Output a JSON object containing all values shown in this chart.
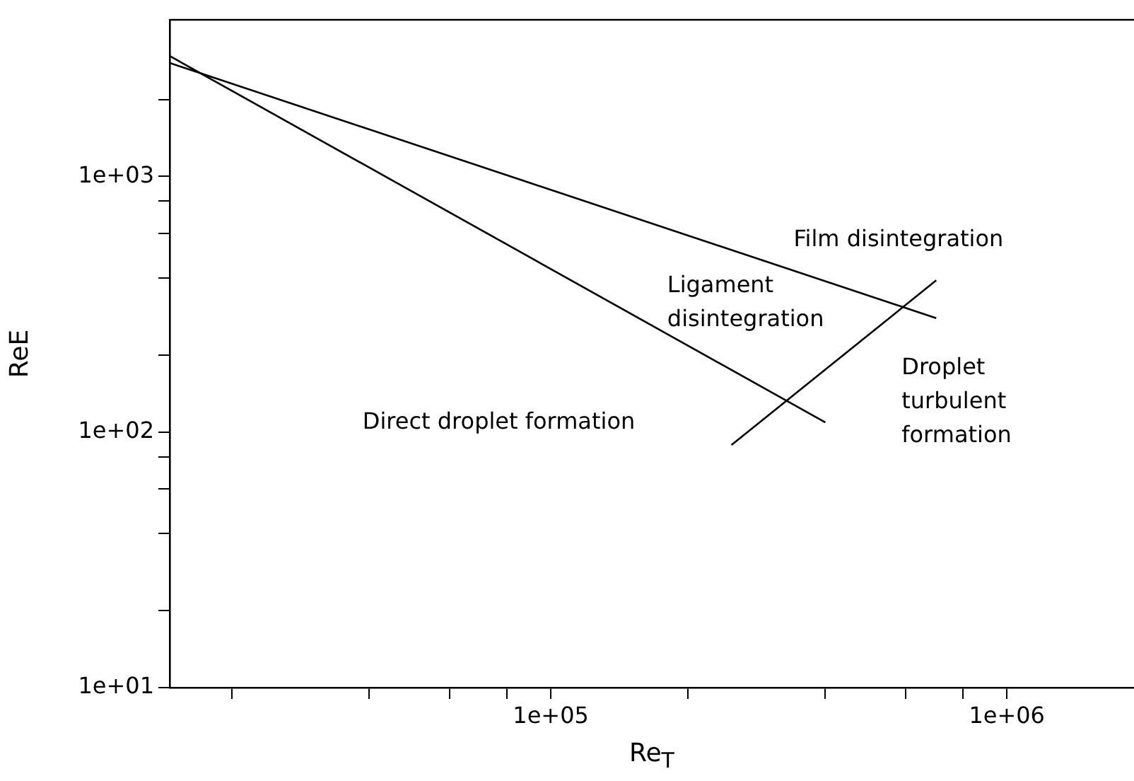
{
  "chart_data": {
    "type": "line",
    "xlabel": "Re$_{T}$",
    "ylabel": "ReE",
    "log": "xy",
    "grid": false,
    "marker": "none",
    "line_style": "solid",
    "xlim": [
      14600,
      1900000
    ],
    "ylim": [
      10,
      4100
    ],
    "xticks": [
      {
        "value": 20000,
        "label": null
      },
      {
        "value": 40000,
        "label": null
      },
      {
        "value": 60000,
        "label": null
      },
      {
        "value": 80000,
        "label": null
      },
      {
        "value": 100000,
        "label": "1e+05"
      },
      {
        "value": 200000,
        "label": null
      },
      {
        "value": 400000,
        "label": null
      },
      {
        "value": 600000,
        "label": null
      },
      {
        "value": 800000,
        "label": null
      },
      {
        "value": 1000000,
        "label": "1e+06"
      }
    ],
    "yticks": [
      {
        "value": 10,
        "label": "1e+01"
      },
      {
        "value": 20,
        "label": null
      },
      {
        "value": 40,
        "label": null
      },
      {
        "value": 60,
        "label": null
      },
      {
        "value": 80,
        "label": null
      },
      {
        "value": 100,
        "label": "1e+02"
      },
      {
        "value": 200,
        "label": null
      },
      {
        "value": 400,
        "label": null
      },
      {
        "value": 600,
        "label": null
      },
      {
        "value": 800,
        "label": null
      },
      {
        "value": 1000,
        "label": "1e+03"
      },
      {
        "value": 2000,
        "label": null
      }
    ],
    "series": [
      {
        "color": "#000000",
        "x": [
          14600,
          700000
        ],
        "values": [
          2780,
          279
        ]
      },
      {
        "color": "#000000",
        "x": [
          14600,
          400000
        ],
        "values": [
          2960,
          109
        ]
      },
      {
        "color": "#000000",
        "x": [
          249000,
          700000
        ],
        "values": [
          89,
          392
        ]
      }
    ],
    "annotations": [
      "Film disintegration",
      "Ligament\ndisintegration",
      "Direct droplet formation",
      "Droplet\nturbulent\nformation"
    ]
  }
}
